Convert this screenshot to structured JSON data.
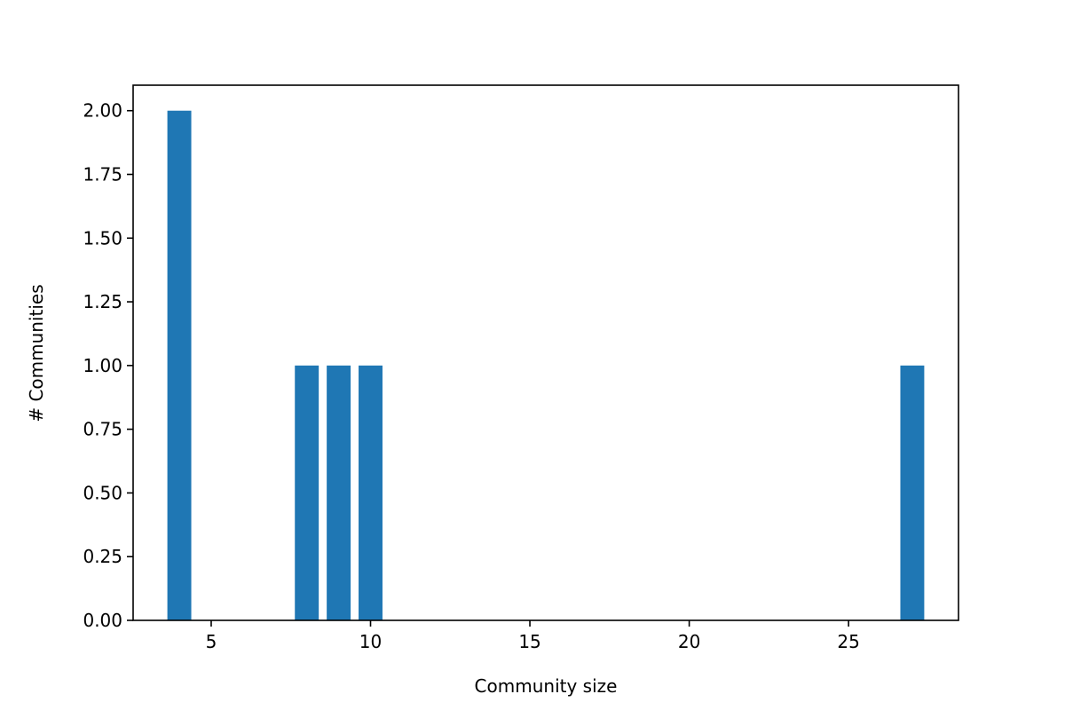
{
  "chart_data": {
    "type": "bar",
    "title": "",
    "xlabel": "Community size",
    "ylabel": "# Communities",
    "x": [
      4,
      8,
      9,
      10,
      27
    ],
    "values": [
      2,
      1,
      1,
      1,
      1
    ],
    "xlim": [
      2.55,
      28.45
    ],
    "ylim": [
      0,
      2.1
    ],
    "xticks": [
      5,
      10,
      15,
      20,
      25
    ],
    "yticks": [
      0,
      0.25,
      0.5,
      0.75,
      1.0,
      1.25,
      1.5,
      1.75,
      2.0
    ],
    "xtick_labels": [
      "5",
      "10",
      "15",
      "20",
      "25"
    ],
    "ytick_labels": [
      "0.00",
      "0.25",
      "0.50",
      "0.75",
      "1.00",
      "1.25",
      "1.50",
      "1.75",
      "2.00"
    ],
    "bar_width": 0.75,
    "bar_color": "#1f77b4",
    "grid": false,
    "legend": "none"
  }
}
